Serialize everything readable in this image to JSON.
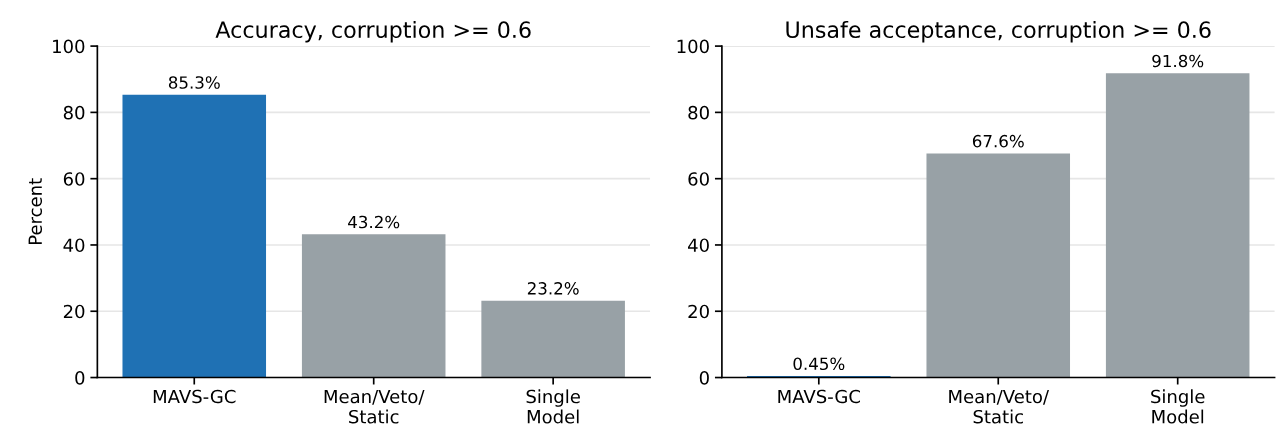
{
  "chart_data": [
    {
      "type": "bar",
      "title": "Accuracy, corruption >= 0.6",
      "ylabel": "Percent",
      "categories": [
        "MAVS-GC",
        "Mean/Veto/\nStatic",
        "Single\nModel"
      ],
      "values": [
        85.3,
        43.2,
        23.2
      ],
      "colors": [
        "#1f71b4",
        "#98a1a6",
        "#98a1a6"
      ],
      "value_labels": [
        "85.3%",
        "43.2%",
        "23.2%"
      ],
      "ylim": [
        0,
        100
      ],
      "yticks": [
        0,
        20,
        40,
        60,
        80,
        100
      ],
      "grid": "y"
    },
    {
      "type": "bar",
      "title": "Unsafe acceptance, corruption >= 0.6",
      "categories": [
        "MAVS-GC",
        "Mean/Veto/\nStatic",
        "Single\nModel"
      ],
      "values": [
        0.45,
        67.6,
        91.8
      ],
      "colors": [
        "#1f71b4",
        "#98a1a6",
        "#98a1a6"
      ],
      "value_labels": [
        "0.45%",
        "67.6%",
        "91.8%"
      ],
      "ylim": [
        0,
        100
      ],
      "yticks": [
        0,
        20,
        40,
        60,
        80,
        100
      ],
      "grid": "y"
    }
  ]
}
